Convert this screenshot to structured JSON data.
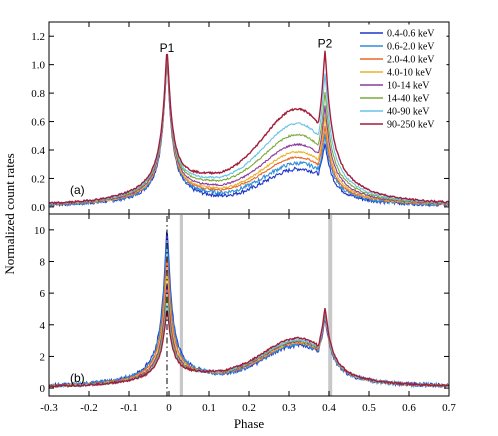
{
  "chart_data": {
    "type": "line",
    "xlabel": "Phase",
    "ylabel": "Normalized count rates",
    "xlim": [
      -0.3,
      0.7
    ],
    "x_ticks": [
      "-0.3",
      "-0.2",
      "-0.1",
      "0",
      "0.1",
      "0.2",
      "0.3",
      "0.4",
      "0.5",
      "0.6",
      "0.7"
    ],
    "x_tick_values": [
      -0.3,
      -0.2,
      -0.1,
      0,
      0.1,
      0.2,
      0.3,
      0.4,
      0.5,
      0.6,
      0.7
    ],
    "colors": [
      "#1f35c8",
      "#2e8fd6",
      "#e8682a",
      "#ecb12c",
      "#8a3d9c",
      "#7aaa3a",
      "#66c3e4",
      "#a31d3a"
    ],
    "series_names": [
      "0.4-0.6 keV",
      "0.6-2.0 keV",
      "2.0-4.0 keV",
      "4.0-10 keV",
      "10-14 keV",
      "14-40 keV",
      "40-90 keV",
      "90-250 keV"
    ],
    "panels": [
      {
        "label": "(a)",
        "ylim": [
          -0.05,
          1.3
        ],
        "y_ticks": [
          "0.0",
          "0.2",
          "0.4",
          "0.6",
          "0.8",
          "1.0",
          "1.2"
        ],
        "y_tick_values": [
          0,
          0.2,
          0.4,
          0.6,
          0.8,
          1.0,
          1.2
        ],
        "peak_labels": [
          {
            "text": "P1",
            "x": -0.005,
            "y": 1.09
          },
          {
            "text": "P2",
            "x": 0.39,
            "y": 1.12
          }
        ],
        "series": [
          {
            "p1": 1.0,
            "p2": 0.43,
            "bridge": 0.03
          },
          {
            "p1": 1.0,
            "p2": 0.48,
            "bridge": 0.05
          },
          {
            "p1": 1.0,
            "p2": 0.53,
            "bridge": 0.07
          },
          {
            "p1": 1.0,
            "p2": 0.59,
            "bridge": 0.08
          },
          {
            "p1": 1.0,
            "p2": 0.66,
            "bridge": 0.1
          },
          {
            "p1": 1.0,
            "p2": 0.75,
            "bridge": 0.13
          },
          {
            "p1": 1.0,
            "p2": 0.87,
            "bridge": 0.15
          },
          {
            "p1": 1.0,
            "p2": 1.02,
            "bridge": 0.18
          }
        ]
      },
      {
        "label": "(b)",
        "ylim": [
          -0.5,
          11
        ],
        "y_ticks": [
          "0",
          "2",
          "4",
          "6",
          "8",
          "10"
        ],
        "y_tick_values": [
          0,
          2,
          4,
          6,
          8,
          10
        ],
        "off_pulse_bands": [
          [
            0.027,
            0.035
          ],
          [
            0.398,
            0.408
          ]
        ],
        "dashdot_x": -0.005,
        "series": [
          {
            "p1": 9.9,
            "p2": 4.2,
            "bridge": 0.45
          },
          {
            "p1": 9.1,
            "p2": 4.3,
            "bridge": 0.5
          },
          {
            "p1": 8.0,
            "p2": 4.35,
            "bridge": 0.55
          },
          {
            "p1": 7.0,
            "p2": 4.4,
            "bridge": 0.6
          },
          {
            "p1": 6.2,
            "p2": 4.45,
            "bridge": 0.65
          },
          {
            "p1": 5.5,
            "p2": 4.5,
            "bridge": 0.7
          },
          {
            "p1": 4.9,
            "p2": 4.55,
            "bridge": 0.75
          },
          {
            "p1": 4.5,
            "p2": 4.7,
            "bridge": 0.8
          }
        ]
      }
    ]
  }
}
